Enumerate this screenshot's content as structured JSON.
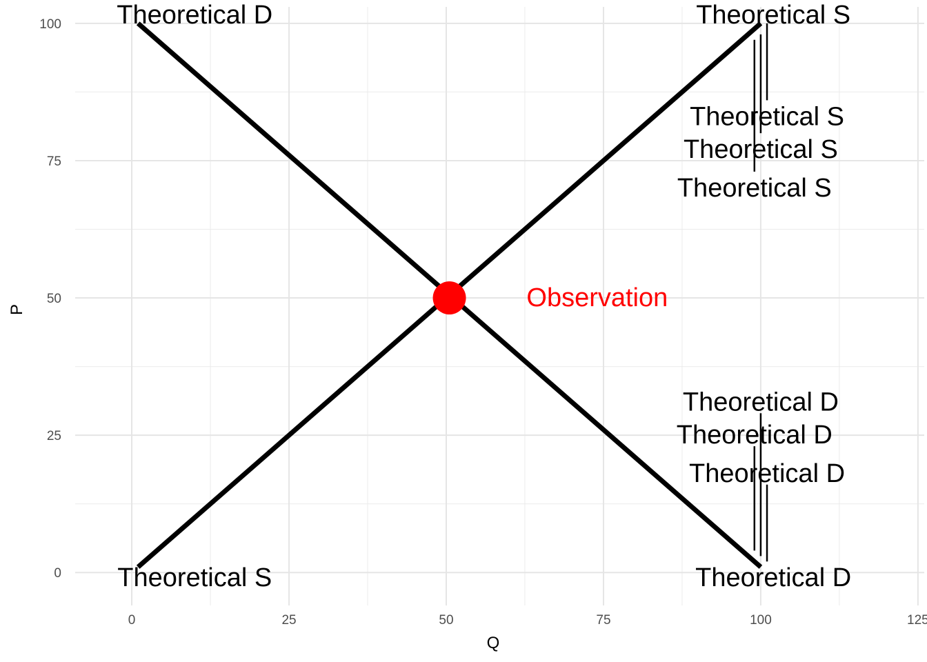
{
  "chart_data": {
    "type": "line",
    "title": "",
    "xlabel": "Q",
    "ylabel": "P",
    "xlim": [
      -9,
      126
    ],
    "ylim": [
      -6,
      103
    ],
    "x_ticks": [
      0,
      25,
      50,
      75,
      100,
      125
    ],
    "y_ticks": [
      0,
      25,
      50,
      75,
      100
    ],
    "x_tick_labels": [
      "0",
      "25",
      "50",
      "75",
      "100",
      "125"
    ],
    "y_tick_labels": [
      "0",
      "25",
      "50",
      "75",
      "100"
    ],
    "grid": true,
    "legend": "none",
    "series": [
      {
        "x": [
          1,
          100
        ],
        "y": [
          100,
          1
        ],
        "color": "#000000"
      },
      {
        "x": [
          1,
          100
        ],
        "y": [
          1,
          100
        ],
        "color": "#000000"
      }
    ],
    "points": [
      {
        "x": 50.5,
        "y": 50,
        "color": "#ff0000"
      }
    ],
    "labels": [
      {
        "text": "Theoretical D",
        "x": 10,
        "y": 101.5,
        "color": "#000000"
      },
      {
        "text": "Theoretical S",
        "x": 102,
        "y": 101.5,
        "color": "#000000"
      },
      {
        "text": "Theoretical S",
        "x": 10,
        "y": -1,
        "color": "#000000"
      },
      {
        "text": "Theoretical D",
        "x": 102,
        "y": -1,
        "color": "#000000"
      },
      {
        "text": "Observation",
        "x": 74,
        "y": 50,
        "color": "#ff0000"
      },
      {
        "text": "Theoretical S",
        "x": 101,
        "y": 83,
        "color": "#000000"
      },
      {
        "text": "Theoretical S",
        "x": 100,
        "y": 77,
        "color": "#000000"
      },
      {
        "text": "Theoretical S",
        "x": 99,
        "y": 70,
        "color": "#000000"
      },
      {
        "text": "Theoretical D",
        "x": 100,
        "y": 31,
        "color": "#000000"
      },
      {
        "text": "Theoretical D",
        "x": 99,
        "y": 25,
        "color": "#000000"
      },
      {
        "text": "Theoretical D",
        "x": 101,
        "y": 18,
        "color": "#000000"
      }
    ],
    "segments": [
      {
        "x": 101,
        "y1": 86,
        "y2": 100
      },
      {
        "x": 100,
        "y1": 80,
        "y2": 98
      },
      {
        "x": 99,
        "y1": 73,
        "y2": 97
      },
      {
        "x": 100,
        "y1": 3,
        "y2": 29
      },
      {
        "x": 99,
        "y1": 4,
        "y2": 23
      },
      {
        "x": 101,
        "y1": 2,
        "y2": 16
      }
    ]
  }
}
